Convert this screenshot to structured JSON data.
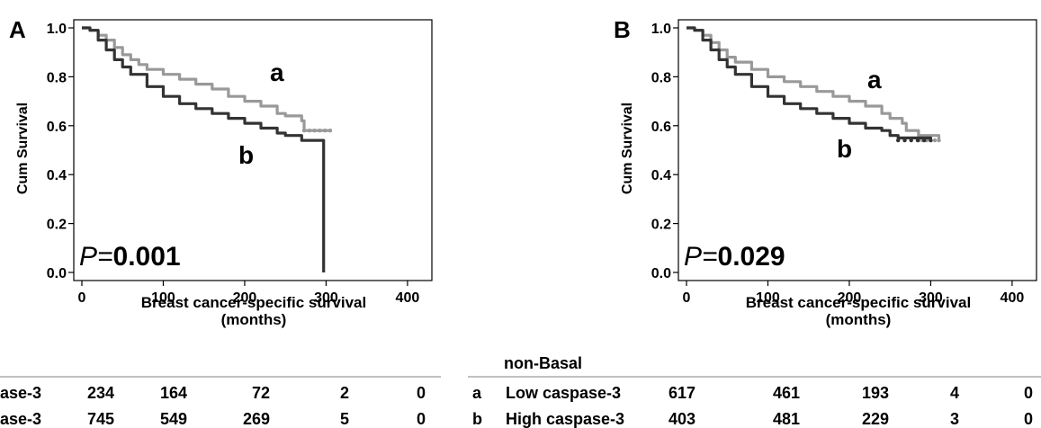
{
  "chart_data": [
    {
      "type": "line",
      "panel_letter": "A",
      "xlabel": "Breast cancer-specific survival",
      "xlabel_unit": "(months)",
      "ylabel": "Cum Survival",
      "xlim": [
        0,
        420
      ],
      "ylim": [
        0,
        1.0
      ],
      "x_ticks": [
        "0",
        "100",
        "200",
        "300",
        "400"
      ],
      "y_ticks": [
        "0.0",
        "0.2",
        "0.4",
        "0.6",
        "0.8",
        "1.0"
      ],
      "p_prefix": "P=",
      "p_value": "0.001",
      "series": [
        {
          "name": "a",
          "color": "#999999",
          "points": [
            [
              0,
              1.0
            ],
            [
              5,
              1.0
            ],
            [
              10,
              0.99
            ],
            [
              20,
              0.97
            ],
            [
              30,
              0.95
            ],
            [
              40,
              0.92
            ],
            [
              50,
              0.89
            ],
            [
              60,
              0.87
            ],
            [
              70,
              0.85
            ],
            [
              80,
              0.83
            ],
            [
              100,
              0.81
            ],
            [
              120,
              0.79
            ],
            [
              140,
              0.77
            ],
            [
              160,
              0.75
            ],
            [
              180,
              0.72
            ],
            [
              200,
              0.7
            ],
            [
              220,
              0.68
            ],
            [
              240,
              0.65
            ],
            [
              250,
              0.64
            ],
            [
              270,
              0.62
            ],
            [
              273,
              0.58
            ],
            [
              305,
              0.58
            ]
          ]
        },
        {
          "name": "b",
          "color": "#333333",
          "points": [
            [
              0,
              1.0
            ],
            [
              5,
              1.0
            ],
            [
              10,
              0.99
            ],
            [
              20,
              0.95
            ],
            [
              30,
              0.91
            ],
            [
              40,
              0.87
            ],
            [
              50,
              0.84
            ],
            [
              60,
              0.81
            ],
            [
              80,
              0.76
            ],
            [
              100,
              0.72
            ],
            [
              120,
              0.69
            ],
            [
              140,
              0.67
            ],
            [
              160,
              0.65
            ],
            [
              180,
              0.63
            ],
            [
              200,
              0.61
            ],
            [
              220,
              0.59
            ],
            [
              240,
              0.57
            ],
            [
              250,
              0.56
            ],
            [
              270,
              0.54
            ],
            [
              296,
              0.54
            ],
            [
              297,
              0.0
            ]
          ]
        }
      ]
    },
    {
      "type": "line",
      "panel_letter": "B",
      "xlabel": "Breast cancer-specific survival",
      "xlabel_unit": "(months)",
      "ylabel": "Cum Survival",
      "xlim": [
        0,
        420
      ],
      "ylim": [
        0,
        1.0
      ],
      "x_ticks": [
        "0",
        "100",
        "200",
        "300",
        "400"
      ],
      "y_ticks": [
        "0.0",
        "0.2",
        "0.4",
        "0.6",
        "0.8",
        "1.0"
      ],
      "p_prefix": "P=",
      "p_value": "0.029",
      "series": [
        {
          "name": "a",
          "color": "#999999",
          "points": [
            [
              0,
              1.0
            ],
            [
              5,
              1.0
            ],
            [
              10,
              0.99
            ],
            [
              20,
              0.97
            ],
            [
              30,
              0.94
            ],
            [
              40,
              0.91
            ],
            [
              50,
              0.88
            ],
            [
              60,
              0.86
            ],
            [
              80,
              0.83
            ],
            [
              100,
              0.8
            ],
            [
              120,
              0.78
            ],
            [
              140,
              0.76
            ],
            [
              160,
              0.74
            ],
            [
              180,
              0.72
            ],
            [
              200,
              0.7
            ],
            [
              220,
              0.68
            ],
            [
              240,
              0.65
            ],
            [
              250,
              0.63
            ],
            [
              265,
              0.61
            ],
            [
              270,
              0.58
            ],
            [
              285,
              0.56
            ],
            [
              310,
              0.54
            ]
          ]
        },
        {
          "name": "b",
          "color": "#333333",
          "points": [
            [
              0,
              1.0
            ],
            [
              5,
              1.0
            ],
            [
              10,
              0.99
            ],
            [
              20,
              0.95
            ],
            [
              30,
              0.91
            ],
            [
              40,
              0.87
            ],
            [
              50,
              0.84
            ],
            [
              60,
              0.81
            ],
            [
              80,
              0.76
            ],
            [
              100,
              0.72
            ],
            [
              120,
              0.69
            ],
            [
              140,
              0.67
            ],
            [
              160,
              0.65
            ],
            [
              180,
              0.63
            ],
            [
              200,
              0.61
            ],
            [
              220,
              0.59
            ],
            [
              240,
              0.58
            ],
            [
              250,
              0.56
            ],
            [
              260,
              0.55
            ],
            [
              300,
              0.54
            ]
          ]
        }
      ]
    }
  ],
  "risk_tables": [
    {
      "title": "",
      "rows": [
        {
          "letter": "",
          "label": "ase-3",
          "counts": [
            "234",
            "164",
            "72",
            "2",
            "0"
          ]
        },
        {
          "letter": "",
          "label": "ase-3",
          "counts": [
            "745",
            "549",
            "269",
            "5",
            "0"
          ]
        }
      ]
    },
    {
      "title": "non-Basal",
      "rows": [
        {
          "letter": "a",
          "label": "Low caspase-3",
          "counts": [
            "617",
            "461",
            "193",
            "4",
            "0"
          ]
        },
        {
          "letter": "b",
          "label": "High caspase-3",
          "counts": [
            "403",
            "481",
            "229",
            "3",
            "0"
          ]
        }
      ]
    }
  ]
}
